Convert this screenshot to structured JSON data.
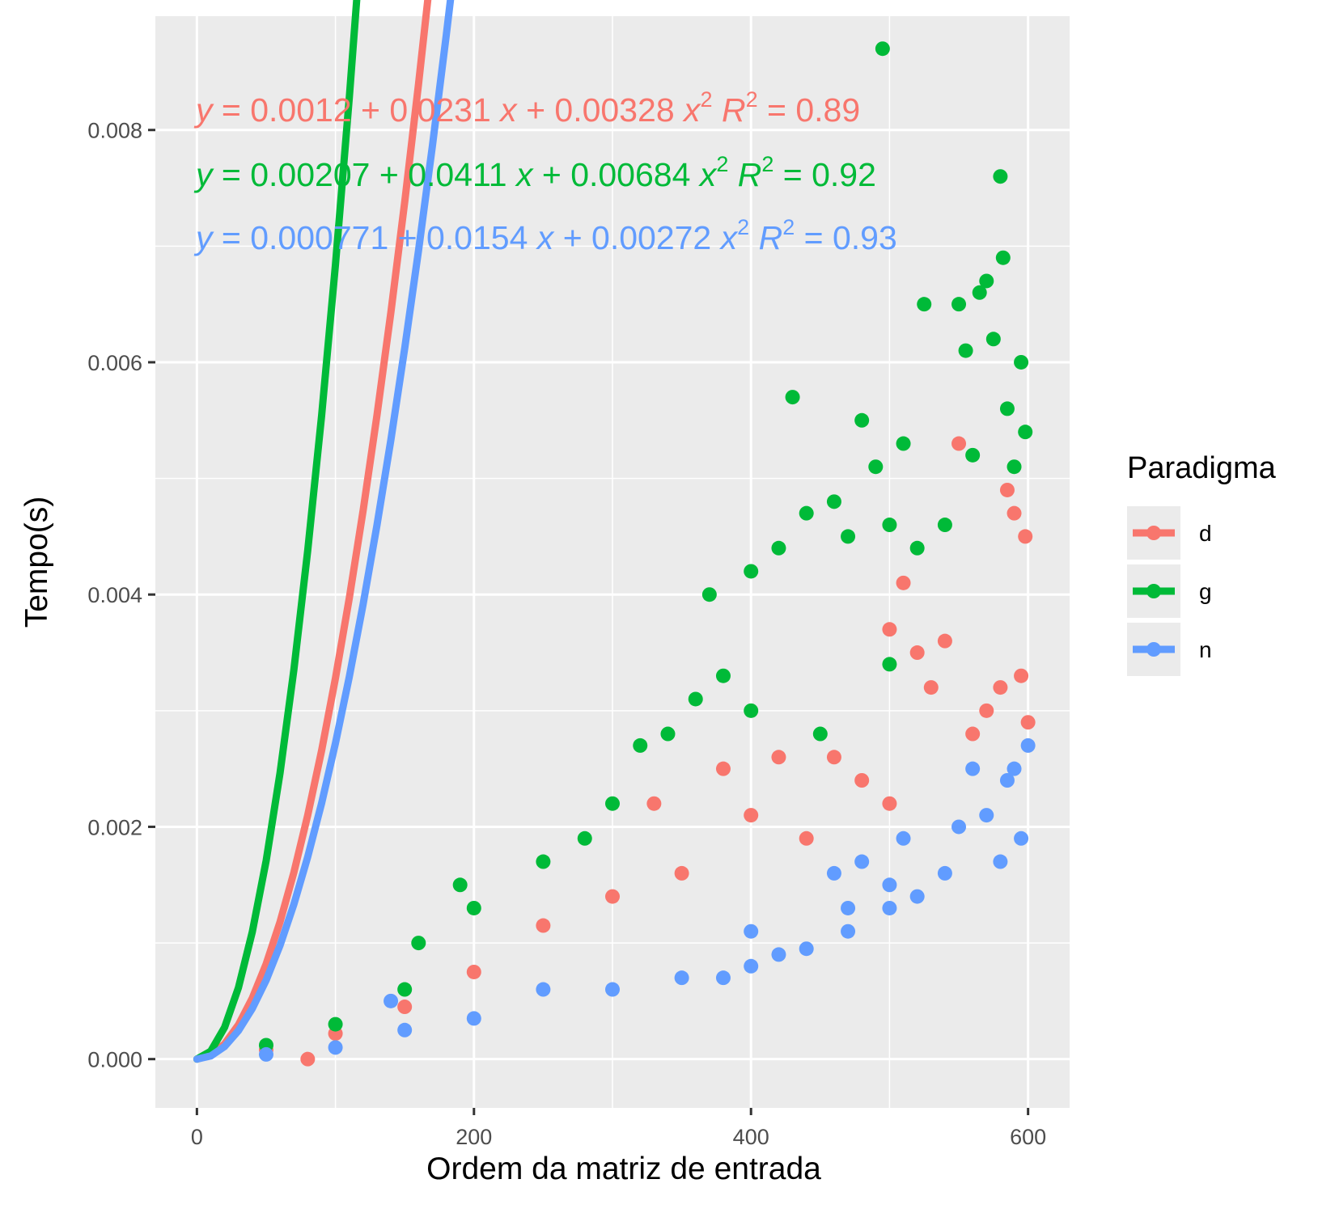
{
  "chart_data": {
    "type": "scatter",
    "xlabel": "Ordem da matriz de entrada",
    "ylabel": "Tempo(s)",
    "xlim": [
      -30,
      630
    ],
    "ylim": [
      -0.00042,
      0.00898
    ],
    "xticks": [
      0,
      200,
      400,
      600
    ],
    "xtick_labels": [
      "0",
      "200",
      "400",
      "600"
    ],
    "yticks": [
      0,
      0.002,
      0.004,
      0.006,
      0.008
    ],
    "ytick_labels": [
      "0.000",
      "0.002",
      "0.004",
      "0.006",
      "0.008"
    ],
    "xminor": [
      100,
      300,
      500
    ],
    "yminor": [
      0.001,
      0.003,
      0.005,
      0.007
    ],
    "grid": true,
    "legend": {
      "title": "Paradigma",
      "position": "right"
    },
    "series": [
      {
        "name": "d",
        "color": "#F8766D",
        "fit": {
          "a": 0.0012,
          "b": 0.0231,
          "c": 0.00328,
          "r2": "0.89"
        },
        "equation": {
          "intercept": "0.0012",
          "linear": "0.0231",
          "quadratic": "0.00328",
          "r2": "0.89"
        },
        "points": [
          [
            50,
            8e-05
          ],
          [
            100,
            0.00022
          ],
          [
            150,
            0.00045
          ],
          [
            200,
            0.00075
          ],
          [
            250,
            0.00115
          ],
          [
            300,
            0.0014
          ],
          [
            330,
            0.0022
          ],
          [
            350,
            0.0016
          ],
          [
            380,
            0.0025
          ],
          [
            400,
            0.0021
          ],
          [
            420,
            0.0026
          ],
          [
            440,
            0.0019
          ],
          [
            460,
            0.0026
          ],
          [
            480,
            0.0024
          ],
          [
            500,
            0.0037
          ],
          [
            510,
            0.0041
          ],
          [
            520,
            0.0035
          ],
          [
            530,
            0.0032
          ],
          [
            540,
            0.0036
          ],
          [
            550,
            0.0053
          ],
          [
            560,
            0.0028
          ],
          [
            570,
            0.003
          ],
          [
            580,
            0.0032
          ],
          [
            585,
            0.0049
          ],
          [
            590,
            0.0047
          ],
          [
            595,
            0.0033
          ],
          [
            598,
            0.0045
          ],
          [
            600,
            0.0029
          ],
          [
            80,
            0.0
          ],
          [
            500,
            0.0022
          ]
        ]
      },
      {
        "name": "g",
        "color": "#00BA38",
        "fit": {
          "a": 0.00207,
          "b": 0.0411,
          "c": 0.00684,
          "r2": "0.92"
        },
        "equation": {
          "intercept": "0.00207",
          "linear": "0.0411",
          "quadratic": "0.00684",
          "r2": "0.92"
        },
        "points": [
          [
            50,
            0.00012
          ],
          [
            100,
            0.0003
          ],
          [
            150,
            0.0006
          ],
          [
            160,
            0.001
          ],
          [
            190,
            0.0015
          ],
          [
            200,
            0.0013
          ],
          [
            250,
            0.0017
          ],
          [
            280,
            0.0019
          ],
          [
            300,
            0.0022
          ],
          [
            320,
            0.0027
          ],
          [
            340,
            0.0028
          ],
          [
            360,
            0.0031
          ],
          [
            370,
            0.004
          ],
          [
            380,
            0.0033
          ],
          [
            400,
            0.0042
          ],
          [
            420,
            0.0044
          ],
          [
            430,
            0.0057
          ],
          [
            440,
            0.0047
          ],
          [
            460,
            0.0048
          ],
          [
            470,
            0.0045
          ],
          [
            480,
            0.0055
          ],
          [
            490,
            0.0051
          ],
          [
            495,
            0.0087
          ],
          [
            500,
            0.0046
          ],
          [
            510,
            0.0053
          ],
          [
            520,
            0.0044
          ],
          [
            525,
            0.0065
          ],
          [
            540,
            0.0046
          ],
          [
            550,
            0.0065
          ],
          [
            555,
            0.0061
          ],
          [
            560,
            0.0052
          ],
          [
            565,
            0.0066
          ],
          [
            570,
            0.0067
          ],
          [
            575,
            0.0062
          ],
          [
            580,
            0.0076
          ],
          [
            582,
            0.0069
          ],
          [
            585,
            0.0056
          ],
          [
            590,
            0.0051
          ],
          [
            595,
            0.006
          ],
          [
            598,
            0.0054
          ],
          [
            400,
            0.003
          ],
          [
            450,
            0.0028
          ],
          [
            500,
            0.0034
          ]
        ]
      },
      {
        "name": "n",
        "color": "#619CFF",
        "fit": {
          "a": 0.000771,
          "b": 0.0154,
          "c": 0.00272,
          "r2": "0.93"
        },
        "equation": {
          "intercept": "0.000771",
          "linear": "0.0154",
          "quadratic": "0.00272",
          "r2": "0.93"
        },
        "points": [
          [
            50,
            4e-05
          ],
          [
            100,
            0.0001
          ],
          [
            140,
            0.0005
          ],
          [
            150,
            0.00025
          ],
          [
            200,
            0.00035
          ],
          [
            250,
            0.0006
          ],
          [
            300,
            0.0006
          ],
          [
            350,
            0.0007
          ],
          [
            380,
            0.0007
          ],
          [
            400,
            0.0011
          ],
          [
            420,
            0.0009
          ],
          [
            440,
            0.00095
          ],
          [
            460,
            0.0016
          ],
          [
            470,
            0.0013
          ],
          [
            480,
            0.0017
          ],
          [
            500,
            0.0013
          ],
          [
            510,
            0.0019
          ],
          [
            520,
            0.0014
          ],
          [
            540,
            0.0016
          ],
          [
            550,
            0.002
          ],
          [
            560,
            0.0025
          ],
          [
            570,
            0.0021
          ],
          [
            580,
            0.0017
          ],
          [
            585,
            0.0024
          ],
          [
            590,
            0.0025
          ],
          [
            595,
            0.0019
          ],
          [
            600,
            0.0027
          ],
          [
            470,
            0.0011
          ],
          [
            500,
            0.0015
          ],
          [
            400,
            0.0008
          ]
        ]
      }
    ]
  }
}
